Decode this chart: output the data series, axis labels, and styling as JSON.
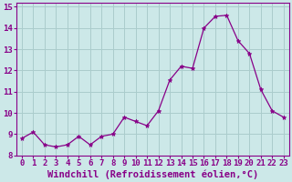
{
  "x": [
    0,
    1,
    2,
    3,
    4,
    5,
    6,
    7,
    8,
    9,
    10,
    11,
    12,
    13,
    14,
    15,
    16,
    17,
    18,
    19,
    20,
    21,
    22,
    23
  ],
  "y": [
    8.8,
    9.1,
    8.5,
    8.4,
    8.5,
    8.9,
    8.5,
    8.9,
    9.0,
    9.8,
    9.6,
    9.4,
    10.1,
    11.55,
    12.2,
    12.1,
    14.0,
    14.55,
    14.6,
    13.4,
    12.8,
    11.1,
    10.1,
    9.8
  ],
  "line_color": "#880088",
  "marker": "*",
  "bg_color": "#cce8e8",
  "grid_color": "#aacccc",
  "xlabel": "Windchill (Refroidissement éolien,°C)",
  "xlim": [
    -0.5,
    23.5
  ],
  "ylim": [
    8.0,
    15.2
  ],
  "yticks": [
    8,
    9,
    10,
    11,
    12,
    13,
    14,
    15
  ],
  "xticks": [
    0,
    1,
    2,
    3,
    4,
    5,
    6,
    7,
    8,
    9,
    10,
    11,
    12,
    13,
    14,
    15,
    16,
    17,
    18,
    19,
    20,
    21,
    22,
    23
  ],
  "font_color": "#880088",
  "tick_font_size": 6.5,
  "label_font_size": 7.5
}
